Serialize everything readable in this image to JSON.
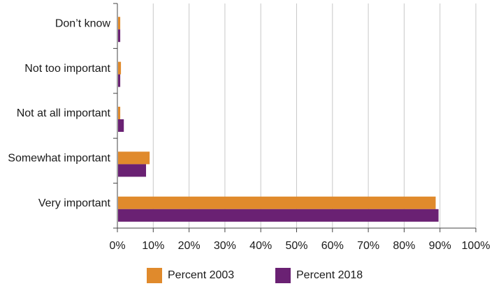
{
  "chart_data": {
    "type": "bar",
    "orientation": "horizontal",
    "title": "",
    "xlabel": "",
    "ylabel": "",
    "categories": [
      "Don’t know",
      "Not too important",
      "Not at all important",
      "Somewhat important",
      "Very important"
    ],
    "series": [
      {
        "name": "Percent 2003",
        "color": "#e08a2c",
        "values": [
          0.6,
          0.8,
          0.6,
          8.8,
          88.6
        ]
      },
      {
        "name": "Percent 2018",
        "color": "#6a2173",
        "values": [
          0.6,
          0.6,
          1.6,
          7.8,
          89.4
        ]
      }
    ],
    "xlim": [
      0,
      100
    ],
    "x_ticks": [
      0,
      10,
      20,
      30,
      40,
      50,
      60,
      70,
      80,
      90,
      100
    ],
    "x_tick_labels": [
      "0%",
      "10%",
      "20%",
      "30%",
      "40%",
      "50%",
      "60%",
      "70%",
      "80%",
      "90%",
      "100%"
    ],
    "grid": "vertical",
    "legend_position": "bottom"
  }
}
